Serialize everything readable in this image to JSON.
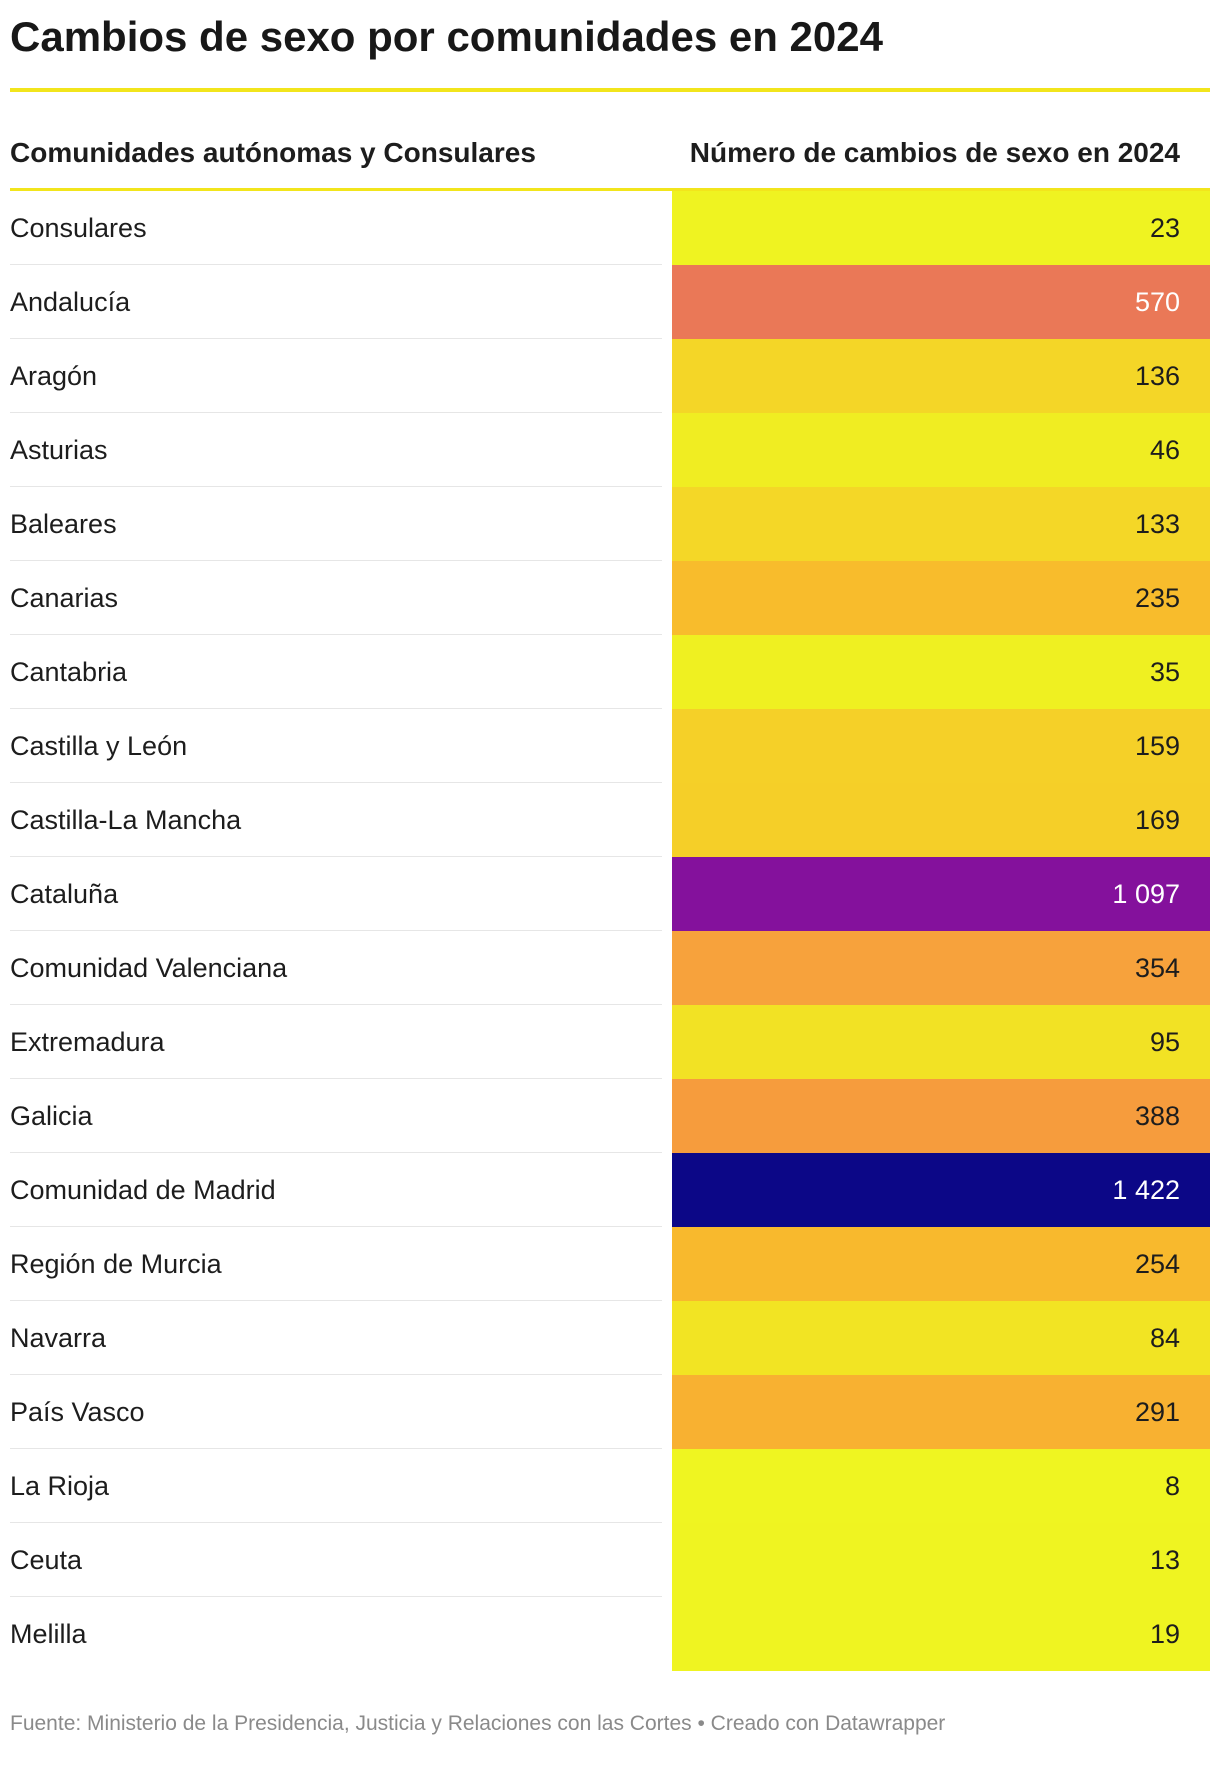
{
  "chart_data": {
    "type": "table",
    "title": "Cambios de sexo por comunidades en 2024",
    "columns": [
      "Comunidades autónomas y Consulares",
      "Número de cambios de sexo en 2024"
    ],
    "rows": [
      {
        "name": "Consulares",
        "value": 23,
        "label": "23",
        "color": "#eff321",
        "text_color": "#1d1d1d"
      },
      {
        "name": "Andalucía",
        "value": 570,
        "label": "570",
        "color": "#ea7857",
        "text_color": "#ffffff"
      },
      {
        "name": "Aragón",
        "value": 136,
        "label": "136",
        "color": "#f4d627",
        "text_color": "#1d1d1d"
      },
      {
        "name": "Asturias",
        "value": 46,
        "label": "46",
        "color": "#f0ed22",
        "text_color": "#1d1d1d"
      },
      {
        "name": "Baleares",
        "value": 133,
        "label": "133",
        "color": "#f4d727",
        "text_color": "#1d1d1d"
      },
      {
        "name": "Canarias",
        "value": 235,
        "label": "235",
        "color": "#f8bc2c",
        "text_color": "#1d1d1d"
      },
      {
        "name": "Cantabria",
        "value": 35,
        "label": "35",
        "color": "#eff021",
        "text_color": "#1d1d1d"
      },
      {
        "name": "Castilla y León",
        "value": 159,
        "label": "159",
        "color": "#f5d028",
        "text_color": "#1d1d1d"
      },
      {
        "name": "Castilla-La Mancha",
        "value": 169,
        "label": "169",
        "color": "#f5cf28",
        "text_color": "#1d1d1d"
      },
      {
        "name": "Cataluña",
        "value": 1097,
        "label": "1 097",
        "color": "#84119c",
        "text_color": "#ffffff"
      },
      {
        "name": "Comunidad Valenciana",
        "value": 354,
        "label": "354",
        "color": "#f7a23c",
        "text_color": "#1d1d1d"
      },
      {
        "name": "Extremadura",
        "value": 95,
        "label": "95",
        "color": "#f2e224",
        "text_color": "#1d1d1d"
      },
      {
        "name": "Galicia",
        "value": 388,
        "label": "388",
        "color": "#f69c3d",
        "text_color": "#1d1d1d"
      },
      {
        "name": "Comunidad de Madrid",
        "value": 1422,
        "label": "1 422",
        "color": "#0c0787",
        "text_color": "#ffffff"
      },
      {
        "name": "Región de Murcia",
        "value": 254,
        "label": "254",
        "color": "#f8b92d",
        "text_color": "#1d1d1d"
      },
      {
        "name": "Navarra",
        "value": 84,
        "label": "84",
        "color": "#f2e423",
        "text_color": "#1d1d1d"
      },
      {
        "name": "País Vasco",
        "value": 291,
        "label": "291",
        "color": "#f8b131",
        "text_color": "#1d1d1d"
      },
      {
        "name": "La Rioja",
        "value": 8,
        "label": "8",
        "color": "#eff521",
        "text_color": "#1d1d1d"
      },
      {
        "name": "Ceuta",
        "value": 13,
        "label": "13",
        "color": "#eff421",
        "text_color": "#1d1d1d"
      },
      {
        "name": "Melilla",
        "value": 19,
        "label": "19",
        "color": "#eff421",
        "text_color": "#1d1d1d"
      }
    ],
    "header_rule_color": "#f2e51c"
  },
  "footer": "Fuente: Ministerio de la Presidencia, Justicia y Relaciones con las Cortes • Creado con Datawrapper"
}
